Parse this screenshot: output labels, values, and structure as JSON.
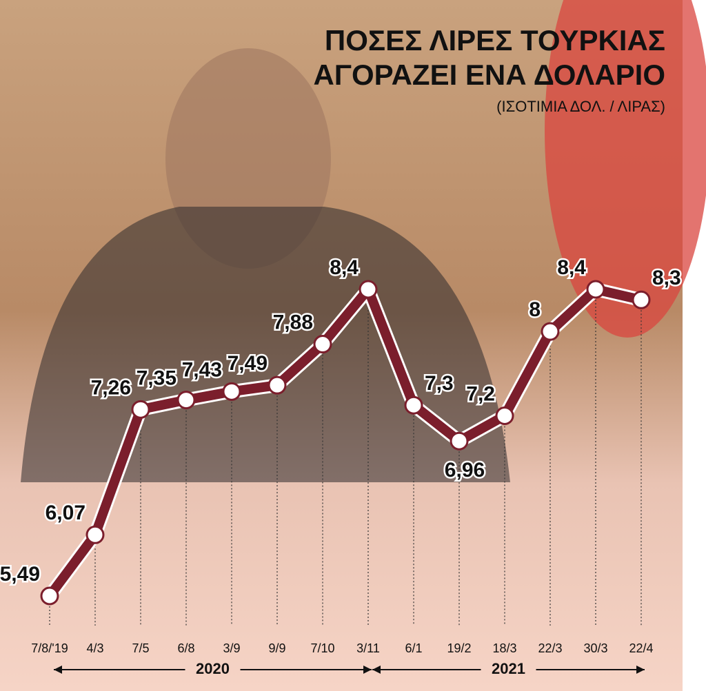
{
  "chart_data": {
    "type": "line",
    "title": [
      "ΠΟΣΕΣ ΛΙΡΕΣ ΤΟΥΡΚΙΑΣ",
      "ΑΓΟΡΑΖΕΙ ΕΝΑ ΔΟΛΑΡΙΟ"
    ],
    "subtitle": "(ΙΣΟΤΙΜΙΑ ΔΟΛ. / ΛΙΡΑΣ)",
    "categories": [
      "7/8/'19",
      "4/3",
      "7/5",
      "6/8",
      "3/9",
      "9/9",
      "7/10",
      "3/11",
      "6/1",
      "19/2",
      "18/3",
      "22/3",
      "30/3",
      "22/4"
    ],
    "series": [
      {
        "name": null,
        "color": "#7b1e2c",
        "values": [
          5.49,
          6.07,
          7.26,
          7.35,
          7.43,
          7.49,
          7.88,
          8.4,
          7.3,
          6.96,
          7.2,
          8,
          8.4,
          8.3
        ],
        "value_labels": [
          "5,49",
          "6,07",
          "7,26",
          "7,35",
          "7,43",
          "7,49",
          "7,88",
          "8,4",
          "7,3",
          "6,96",
          "7,2",
          "8",
          "8,4",
          "8,3"
        ]
      }
    ],
    "periods": [
      {
        "label": "2020",
        "from": 1,
        "to": 7
      },
      {
        "label": "2021",
        "from": 8,
        "to": 13
      }
    ]
  }
}
